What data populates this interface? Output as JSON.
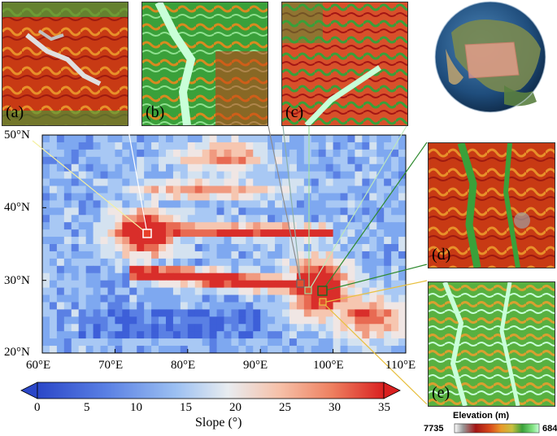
{
  "map": {
    "lat_labels": [
      "50°N",
      "40°N",
      "30°N",
      "20°N"
    ],
    "lon_labels": [
      "60°E",
      "70°E",
      "80°E",
      "90°E",
      "100°E",
      "110°E"
    ],
    "lat_range": [
      20,
      50
    ],
    "lon_range": [
      60,
      110
    ],
    "slope_colorbar": {
      "title": "Slope (°)",
      "ticks": [
        "0",
        "5",
        "10",
        "15",
        "20",
        "25",
        "30",
        "35"
      ],
      "range": [
        0,
        35
      ],
      "colors": [
        "#2b47c8",
        "#4a70e0",
        "#7ea8f0",
        "#b8d4f5",
        "#eef0f2",
        "#f6c6b0",
        "#f08a70",
        "#dd2a2a"
      ]
    },
    "markers": [
      {
        "id": "a",
        "lon": 74.3,
        "lat": 36.5
      },
      {
        "id": "b",
        "lon": 95.5,
        "lat": 29.5
      },
      {
        "id": "c",
        "lon": 96.7,
        "lat": 28.6
      },
      {
        "id": "d",
        "lon": 98.5,
        "lat": 28.5
      },
      {
        "id": "e",
        "lon": 98.2,
        "lat": 26.5
      }
    ]
  },
  "insets": [
    {
      "label": "(a)",
      "name": "inset-a"
    },
    {
      "label": "(b)",
      "name": "inset-b"
    },
    {
      "label": "(c)",
      "name": "inset-c"
    },
    {
      "label": "(d)",
      "name": "inset-d"
    },
    {
      "label": "(e)",
      "name": "inset-e"
    }
  ],
  "elevation_legend": {
    "title": "Elevation (m)",
    "max": "7735",
    "min": "684",
    "colors": [
      "#ffffff",
      "#a0a0a0",
      "#a31515",
      "#d84a1a",
      "#e89a2a",
      "#c8c040",
      "#3aa03a",
      "#7fe07f",
      "#c8ffd8"
    ]
  },
  "globe": {
    "highlight_color": "#f0a090"
  }
}
